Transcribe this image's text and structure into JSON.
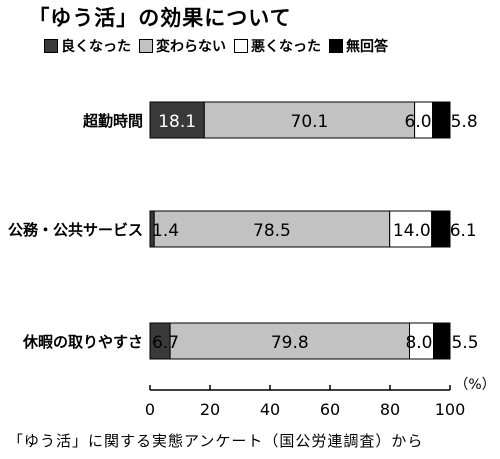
{
  "title": "「ゆう活」の効果について",
  "source": "「ゆう活」に関する実態アンケート（国公労連調査）から",
  "chart_data": {
    "type": "bar",
    "orientation": "horizontal",
    "stacked": true,
    "categories": [
      "超勤時間",
      "公務・公共サービス",
      "休暇の取りやすさ"
    ],
    "series": [
      {
        "name": "良くなった",
        "values": [
          18.1,
          1.4,
          6.7
        ],
        "color": "#3a3a3a"
      },
      {
        "name": "変わらない",
        "values": [
          70.1,
          78.5,
          79.8
        ],
        "color": "#c2c2c2"
      },
      {
        "name": "悪くなった",
        "values": [
          6.0,
          14.0,
          8.0
        ],
        "color": "#ffffff"
      },
      {
        "name": "無回答",
        "values": [
          5.8,
          6.1,
          5.5
        ],
        "color": "#000000"
      }
    ],
    "value_labels": [
      [
        "18.1",
        "70.1",
        "6.0",
        "5.8"
      ],
      [
        "1.4",
        "78.5",
        "14.0",
        "6.1"
      ],
      [
        "6.7",
        "79.8",
        "8.0",
        "5.5"
      ]
    ],
    "xlim": [
      0,
      100
    ],
    "xticks": [
      "0",
      "20",
      "40",
      "60",
      "80",
      "100"
    ],
    "unit_label": "（%）",
    "grid": false,
    "legend_position": "top"
  }
}
